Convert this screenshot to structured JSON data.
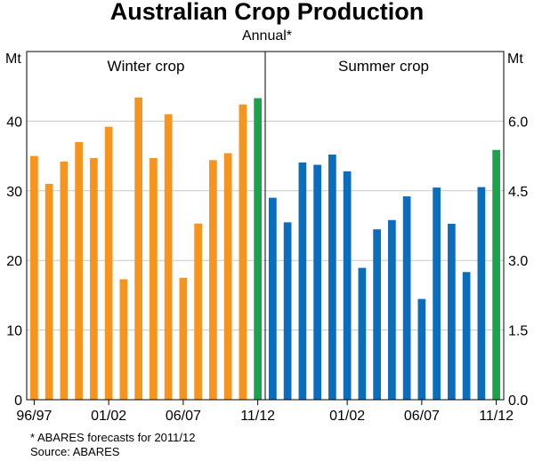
{
  "chart_data": {
    "type": "bar",
    "title": "Australian Crop Production",
    "subtitle": "Annual*",
    "left_axis": {
      "unit": "Mt",
      "ylim": [
        0,
        50
      ],
      "ticks": [
        "0",
        "10",
        "20",
        "30",
        "40"
      ],
      "tick_values": [
        0,
        10,
        20,
        30,
        40
      ]
    },
    "right_axis": {
      "unit": "Mt",
      "ylim": [
        0,
        7.5
      ],
      "ticks": [
        "0.0",
        "1.5",
        "3.0",
        "4.5",
        "6.0"
      ],
      "tick_values": [
        0,
        1.5,
        3.0,
        4.5,
        6.0
      ]
    },
    "grid": true,
    "panels": [
      {
        "label": "Winter crop",
        "axis": "left",
        "categories": [
          "1996/97",
          "1997/98",
          "1998/99",
          "1999/00",
          "2000/01",
          "2001/02",
          "2002/03",
          "2003/04",
          "2004/05",
          "2005/06",
          "2006/07",
          "2007/08",
          "2008/09",
          "2009/10",
          "2010/11",
          "2011/12"
        ],
        "values": [
          35.0,
          31.0,
          34.2,
          37.0,
          34.7,
          39.2,
          17.3,
          43.4,
          34.7,
          41.0,
          17.5,
          25.3,
          34.4,
          35.4,
          42.4,
          43.3
        ],
        "x_tick_labels": [
          "96/97",
          "01/02",
          "06/07",
          "11/12"
        ],
        "x_tick_indices": [
          0,
          5,
          10,
          15
        ],
        "color": "#f7941d",
        "forecast_color": "#1aa34a",
        "forecast_index": 15
      },
      {
        "label": "Summer crop",
        "axis": "right",
        "categories": [
          "1996/97",
          "1997/98",
          "1998/99",
          "1999/00",
          "2000/01",
          "2001/02",
          "2002/03",
          "2003/04",
          "2004/05",
          "2005/06",
          "2006/07",
          "2007/08",
          "2008/09",
          "2009/10",
          "2010/11",
          "2011/12"
        ],
        "values": [
          4.35,
          3.82,
          5.11,
          5.06,
          5.28,
          4.92,
          2.84,
          3.67,
          3.87,
          4.38,
          2.17,
          4.57,
          3.79,
          2.75,
          4.58,
          5.38
        ],
        "x_tick_labels": [
          "01/02",
          "06/07",
          "11/12"
        ],
        "x_tick_indices": [
          5,
          10,
          15
        ],
        "color": "#0a6ebd",
        "forecast_color": "#1aa34a",
        "forecast_index": 15
      }
    ],
    "footnotes": [
      "*   ABARES forecasts for 2011/12",
      "Source: ABARES"
    ]
  }
}
